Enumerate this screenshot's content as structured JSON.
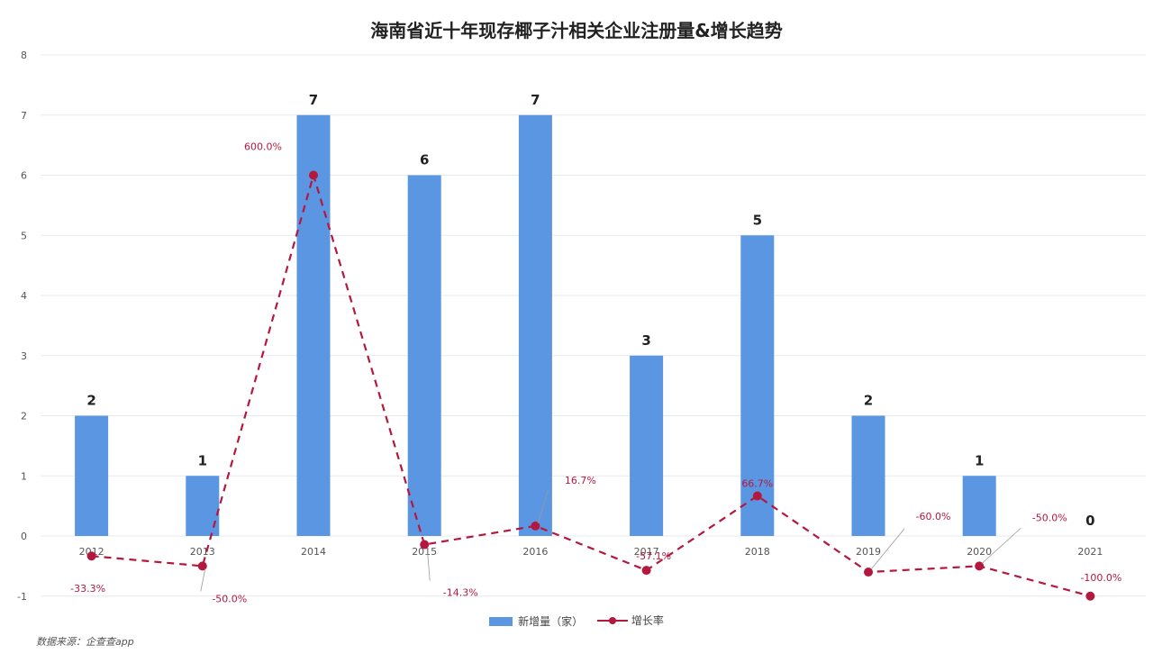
{
  "chart_data": {
    "type": "bar",
    "title": "海南省近十年现存椰子汁相关企业注册量&增长趋势",
    "categories": [
      "2012",
      "2013",
      "2014",
      "2015",
      "2016",
      "2017",
      "2018",
      "2019",
      "2020",
      "2021"
    ],
    "series": [
      {
        "name": "新增量（家）",
        "type": "bar",
        "values": [
          2,
          1,
          7,
          6,
          7,
          3,
          5,
          2,
          1,
          0
        ],
        "labels": [
          "2",
          "1",
          "7",
          "6",
          "7",
          "3",
          "5",
          "2",
          "1",
          "0"
        ],
        "color": "#5b96e2"
      },
      {
        "name": "增长率",
        "type": "line",
        "style": "dashed",
        "values": [
          -33.3,
          -50.0,
          600.0,
          -14.3,
          16.7,
          -57.1,
          66.7,
          -60.0,
          -50.0,
          -100.0
        ],
        "labels": [
          "-33.3%",
          "-50.0%",
          "600.0%",
          "-14.3%",
          "16.7%",
          "-57.1%",
          "66.7%",
          "-60.0%",
          "-50.0%",
          "-100.0%"
        ],
        "color": "#b5183e"
      }
    ],
    "ylim": [
      -1,
      8
    ],
    "yticks": [
      "-1",
      "0",
      "1",
      "2",
      "3",
      "4",
      "5",
      "6",
      "7",
      "8"
    ],
    "grid": true,
    "legend_position": "bottom-center"
  },
  "source": "数据来源：企查查app"
}
